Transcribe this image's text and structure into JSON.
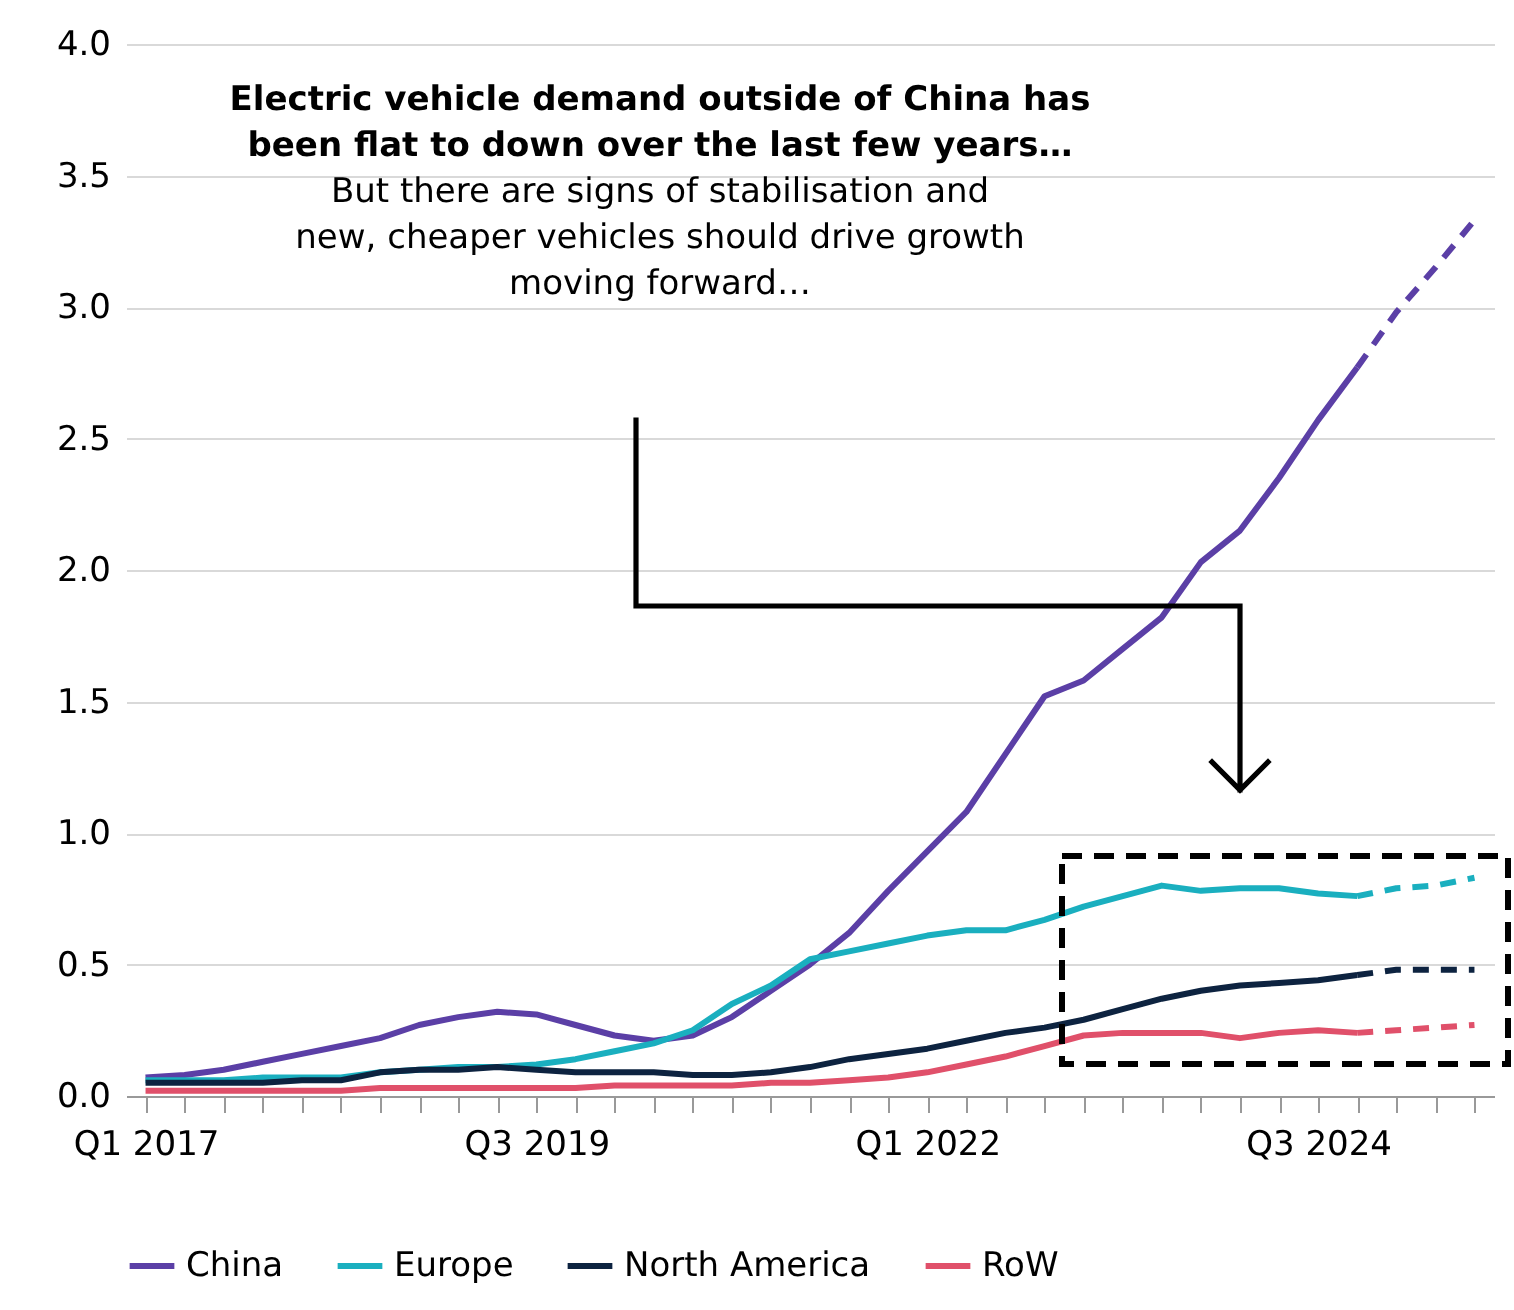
{
  "chart_data": {
    "type": "line",
    "categories": [
      "Q1 2017",
      null,
      null,
      null,
      null,
      null,
      null,
      null,
      null,
      null,
      "Q3 2019",
      null,
      null,
      null,
      null,
      null,
      null,
      null,
      null,
      null,
      "Q1 2022",
      null,
      null,
      null,
      null,
      null,
      null,
      null,
      null,
      null,
      "Q3 2024",
      null,
      null,
      null,
      null
    ],
    "series": [
      {
        "name": "China",
        "color": "#5b3fa6",
        "line_style": "solid",
        "values": [
          0.07,
          0.08,
          0.1,
          0.13,
          0.16,
          0.19,
          0.22,
          0.27,
          0.3,
          0.32,
          0.31,
          0.27,
          0.23,
          0.21,
          0.23,
          0.3,
          0.4,
          0.5,
          0.62,
          0.78,
          0.93,
          1.08,
          1.3,
          1.52,
          1.58,
          1.7,
          1.82,
          2.03,
          2.15,
          2.35,
          2.57,
          2.77,
          null,
          null,
          null
        ]
      },
      {
        "name": "Europe",
        "color": "#1aafbf",
        "line_style": "solid",
        "values": [
          0.06,
          0.06,
          0.06,
          0.07,
          0.07,
          0.07,
          0.09,
          0.1,
          0.11,
          0.11,
          0.12,
          0.14,
          0.17,
          0.2,
          0.25,
          0.35,
          0.42,
          0.52,
          0.55,
          0.58,
          0.61,
          0.63,
          0.63,
          0.67,
          0.72,
          0.76,
          0.8,
          0.78,
          0.79,
          0.79,
          0.77,
          0.76,
          null,
          null,
          null
        ]
      },
      {
        "name": "North America",
        "color": "#0d2340",
        "line_style": "solid",
        "values": [
          0.05,
          0.05,
          0.05,
          0.05,
          0.06,
          0.06,
          0.09,
          0.1,
          0.1,
          0.11,
          0.1,
          0.09,
          0.09,
          0.09,
          0.08,
          0.08,
          0.09,
          0.11,
          0.14,
          0.16,
          0.18,
          0.21,
          0.24,
          0.26,
          0.29,
          0.33,
          0.37,
          0.4,
          0.42,
          0.43,
          0.44,
          0.46,
          null,
          null,
          null
        ]
      },
      {
        "name": "RoW",
        "color": "#e0506a",
        "line_style": "solid",
        "values": [
          0.02,
          0.02,
          0.02,
          0.02,
          0.02,
          0.02,
          0.03,
          0.03,
          0.03,
          0.03,
          0.03,
          0.03,
          0.04,
          0.04,
          0.04,
          0.04,
          0.05,
          0.05,
          0.06,
          0.07,
          0.09,
          0.12,
          0.15,
          0.19,
          0.23,
          0.24,
          0.24,
          0.24,
          0.22,
          0.24,
          0.25,
          0.24,
          null,
          null,
          null
        ]
      },
      {
        "color": "#5b3fa6",
        "line_style": "dashed",
        "values": [
          null,
          null,
          null,
          null,
          null,
          null,
          null,
          null,
          null,
          null,
          null,
          null,
          null,
          null,
          null,
          null,
          null,
          null,
          null,
          null,
          null,
          null,
          null,
          null,
          null,
          null,
          null,
          null,
          null,
          null,
          null,
          2.77,
          2.98,
          3.15,
          3.33
        ]
      },
      {
        "color": "#1aafbf",
        "line_style": "dashed",
        "values": [
          null,
          null,
          null,
          null,
          null,
          null,
          null,
          null,
          null,
          null,
          null,
          null,
          null,
          null,
          null,
          null,
          null,
          null,
          null,
          null,
          null,
          null,
          null,
          null,
          null,
          null,
          null,
          null,
          null,
          null,
          null,
          0.76,
          0.79,
          0.8,
          0.83
        ]
      },
      {
        "color": "#0d2340",
        "line_style": "dashed",
        "values": [
          null,
          null,
          null,
          null,
          null,
          null,
          null,
          null,
          null,
          null,
          null,
          null,
          null,
          null,
          null,
          null,
          null,
          null,
          null,
          null,
          null,
          null,
          null,
          null,
          null,
          null,
          null,
          null,
          null,
          null,
          null,
          0.46,
          0.48,
          0.48,
          0.48
        ]
      },
      {
        "color": "#e0506a",
        "line_style": "dashed",
        "values": [
          null,
          null,
          null,
          null,
          null,
          null,
          null,
          null,
          null,
          null,
          null,
          null,
          null,
          null,
          null,
          null,
          null,
          null,
          null,
          null,
          null,
          null,
          null,
          null,
          null,
          null,
          null,
          null,
          null,
          null,
          null,
          0.24,
          0.25,
          0.26,
          0.27
        ]
      }
    ],
    "ylim": [
      0,
      4.0
    ],
    "yticks": [
      {
        "value": 0,
        "label": "0.0"
      },
      {
        "value": 0.5,
        "label": "0.5"
      },
      {
        "value": 1,
        "label": "1.0"
      },
      {
        "value": 1.5,
        "label": "1.5"
      },
      {
        "value": 2,
        "label": "2.0"
      },
      {
        "value": 2.5,
        "label": "2.5"
      },
      {
        "value": 3,
        "label": "3.0"
      },
      {
        "value": 3.5,
        "label": "3.5"
      },
      {
        "value": 4,
        "label": "4.0"
      }
    ],
    "grid": "y",
    "legend": "bottom",
    "annotations": [
      "Electric vehicle demand outside of China has been flat to down over the last few years…",
      "But there are signs of stabilisation and new, cheaper vehicles should drive growth moving forward…"
    ]
  }
}
